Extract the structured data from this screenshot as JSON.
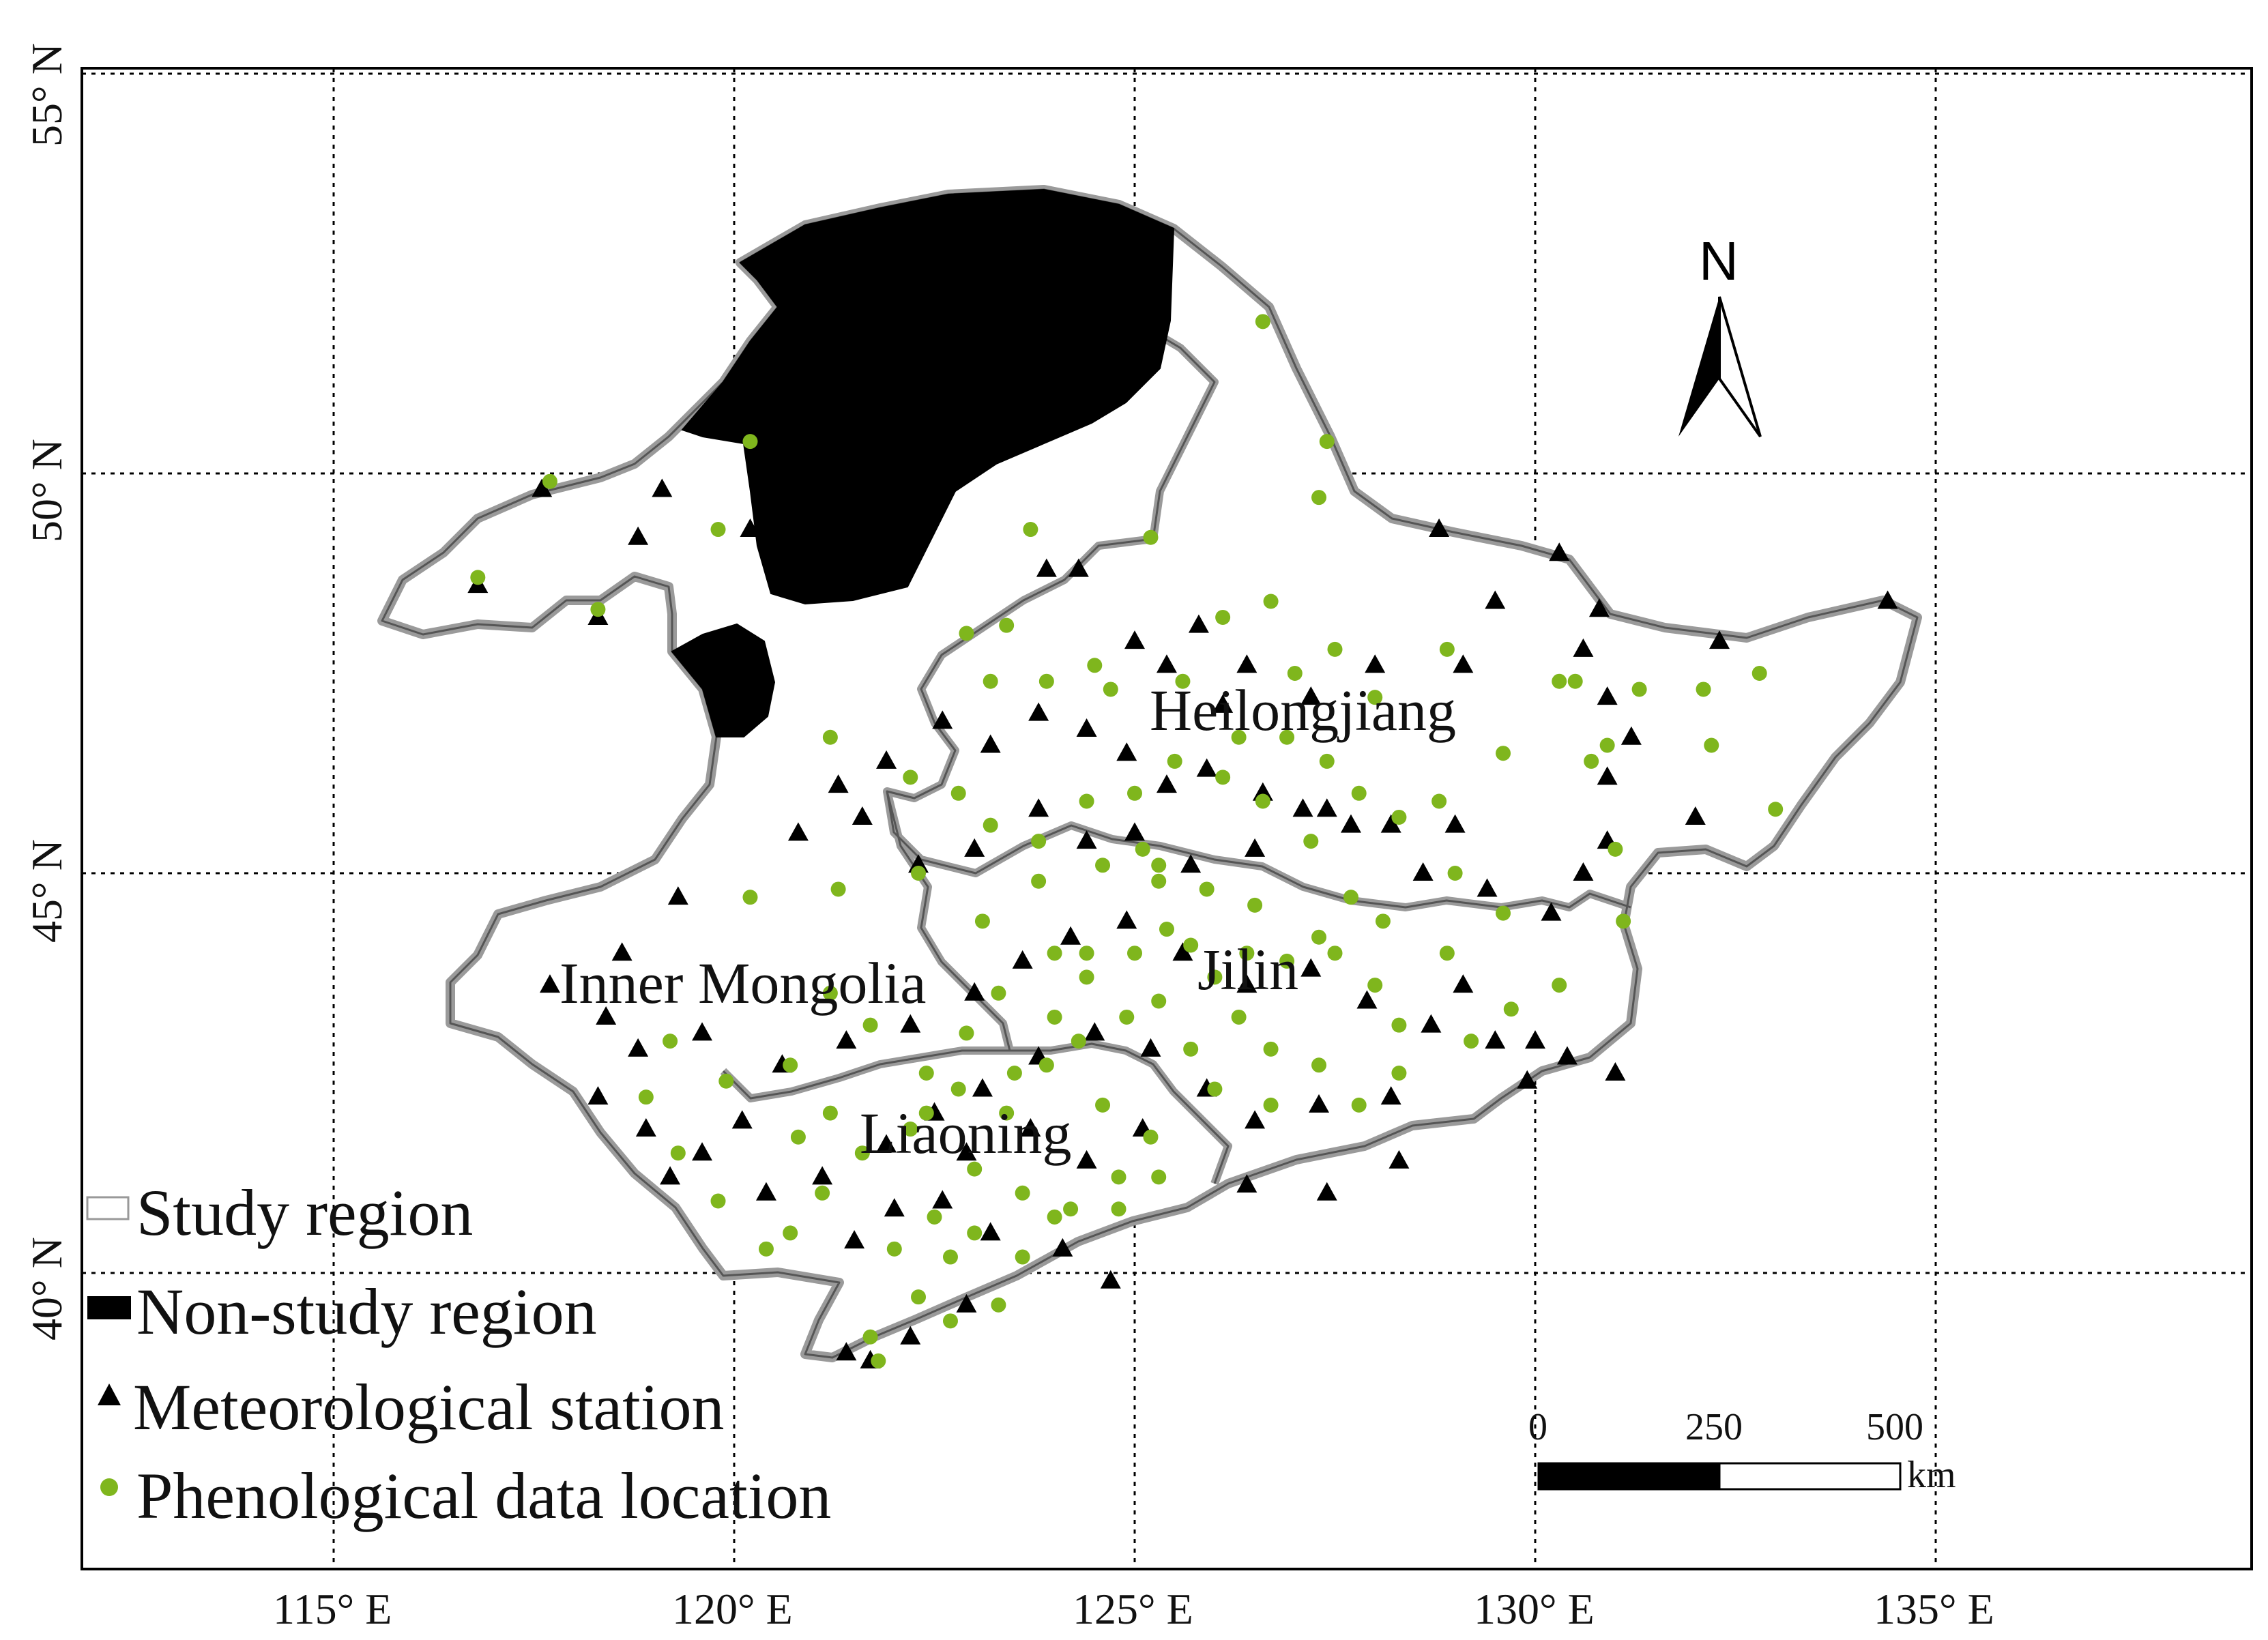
{
  "map": {
    "lon_labels": [
      "115° E",
      "120° E",
      "125° E",
      "130° E",
      "135° E"
    ],
    "lat_labels": [
      "55° N",
      "50° N",
      "45° N",
      "40° N"
    ],
    "region_labels": [
      "Heilongjiang",
      "Inner Mongolia",
      "Jilin",
      "Liaoning"
    ],
    "north_arrow": "N",
    "scale_bar": {
      "ticks": [
        "0",
        "250",
        "500"
      ],
      "unit": "km"
    },
    "legend": {
      "study_region": "Study region",
      "non_study_region": "Non-study region",
      "meteorological_station": "Meteorological station",
      "phenological_location": "Phenological data location"
    },
    "colors": {
      "phenological": "#7fb61d",
      "station": "#000000",
      "boundary": "#9a9a9a",
      "non_study": "#000000"
    },
    "icons": {
      "station": "triangle-icon",
      "phenological": "dot-icon",
      "north": "north-arrow-icon"
    },
    "stations": [
      [
        117.6,
        49.8
      ],
      [
        118.8,
        49.2
      ],
      [
        116.8,
        48.6
      ],
      [
        118.3,
        48.2
      ],
      [
        120.2,
        49.3
      ],
      [
        119.1,
        49.8
      ],
      [
        123.9,
        48.8
      ],
      [
        124.3,
        48.8
      ],
      [
        125.0,
        47.9
      ],
      [
        125.8,
        48.1
      ],
      [
        126.4,
        47.6
      ],
      [
        127.2,
        47.2
      ],
      [
        128.0,
        47.6
      ],
      [
        129.1,
        47.6
      ],
      [
        129.5,
        48.4
      ],
      [
        128.8,
        49.3
      ],
      [
        130.3,
        49.0
      ],
      [
        130.8,
        48.3
      ],
      [
        132.3,
        47.9
      ],
      [
        134.4,
        48.4
      ],
      [
        130.6,
        47.8
      ],
      [
        130.9,
        47.2
      ],
      [
        131.2,
        46.7
      ],
      [
        130.9,
        46.2
      ],
      [
        132.0,
        45.7
      ],
      [
        130.9,
        45.4
      ],
      [
        130.6,
        45.0
      ],
      [
        129.0,
        45.6
      ],
      [
        128.2,
        45.6
      ],
      [
        127.4,
        45.8
      ],
      [
        126.6,
        46.0
      ],
      [
        125.9,
        46.3
      ],
      [
        125.4,
        46.1
      ],
      [
        124.9,
        46.5
      ],
      [
        124.4,
        46.8
      ],
      [
        123.8,
        47.0
      ],
      [
        123.2,
        46.6
      ],
      [
        122.6,
        46.9
      ],
      [
        121.9,
        46.4
      ],
      [
        121.3,
        46.1
      ],
      [
        120.8,
        45.5
      ],
      [
        121.6,
        45.7
      ],
      [
        122.3,
        45.1
      ],
      [
        123.0,
        45.3
      ],
      [
        123.8,
        45.8
      ],
      [
        124.4,
        45.4
      ],
      [
        125.0,
        45.5
      ],
      [
        125.7,
        45.1
      ],
      [
        126.5,
        45.3
      ],
      [
        127.1,
        45.8
      ],
      [
        127.7,
        45.6
      ],
      [
        128.6,
        45.0
      ],
      [
        129.4,
        44.8
      ],
      [
        130.2,
        44.5
      ],
      [
        119.3,
        44.7
      ],
      [
        118.6,
        44.0
      ],
      [
        117.7,
        43.6
      ],
      [
        118.4,
        43.2
      ],
      [
        119.6,
        43.0
      ],
      [
        120.6,
        42.6
      ],
      [
        121.4,
        42.9
      ],
      [
        122.2,
        43.1
      ],
      [
        123.0,
        43.5
      ],
      [
        123.6,
        43.9
      ],
      [
        124.2,
        44.2
      ],
      [
        124.9,
        44.4
      ],
      [
        125.6,
        44.0
      ],
      [
        126.4,
        43.6
      ],
      [
        127.2,
        43.8
      ],
      [
        127.9,
        43.4
      ],
      [
        128.7,
        43.1
      ],
      [
        129.5,
        42.9
      ],
      [
        130.4,
        42.7
      ],
      [
        129.9,
        42.4
      ],
      [
        128.2,
        42.2
      ],
      [
        127.3,
        42.1
      ],
      [
        126.5,
        41.9
      ],
      [
        125.9,
        42.3
      ],
      [
        125.2,
        42.8
      ],
      [
        124.5,
        43.0
      ],
      [
        123.8,
        42.7
      ],
      [
        123.1,
        42.3
      ],
      [
        122.5,
        42.0
      ],
      [
        121.9,
        41.6
      ],
      [
        121.1,
        41.2
      ],
      [
        120.4,
        41.0
      ],
      [
        119.6,
        41.5
      ],
      [
        118.9,
        41.8
      ],
      [
        118.3,
        42.2
      ],
      [
        118.8,
        42.8
      ],
      [
        119.2,
        41.2
      ],
      [
        120.1,
        41.9
      ],
      [
        122.9,
        41.5
      ],
      [
        123.7,
        41.8
      ],
      [
        124.4,
        41.4
      ],
      [
        125.1,
        41.8
      ],
      [
        122.0,
        40.8
      ],
      [
        121.5,
        40.4
      ],
      [
        122.6,
        40.9
      ],
      [
        123.2,
        40.5
      ],
      [
        124.1,
        40.3
      ],
      [
        124.7,
        39.9
      ],
      [
        122.9,
        39.6
      ],
      [
        122.2,
        39.2
      ],
      [
        121.4,
        39.0
      ],
      [
        121.7,
        38.9
      ],
      [
        126.4,
        41.1
      ],
      [
        127.4,
        41.0
      ],
      [
        128.3,
        41.4
      ],
      [
        129.1,
        43.6
      ],
      [
        130.0,
        42.9
      ],
      [
        131.0,
        42.5
      ],
      [
        126.1,
        47.1
      ],
      [
        125.4,
        47.6
      ]
    ],
    "phenological": [
      [
        117.7,
        49.9
      ],
      [
        116.8,
        48.7
      ],
      [
        118.3,
        48.3
      ],
      [
        119.8,
        49.3
      ],
      [
        120.2,
        50.4
      ],
      [
        123.7,
        49.3
      ],
      [
        125.2,
        49.2
      ],
      [
        127.3,
        49.7
      ],
      [
        126.6,
        51.9
      ],
      [
        127.4,
        50.4
      ],
      [
        128.9,
        47.8
      ],
      [
        127.5,
        47.8
      ],
      [
        126.1,
        48.2
      ],
      [
        126.7,
        48.4
      ],
      [
        125.6,
        47.4
      ],
      [
        124.7,
        47.3
      ],
      [
        123.4,
        48.1
      ],
      [
        122.9,
        48.0
      ],
      [
        123.2,
        47.4
      ],
      [
        123.9,
        47.4
      ],
      [
        124.5,
        47.6
      ],
      [
        127.0,
        47.5
      ],
      [
        128.0,
        47.2
      ],
      [
        129.6,
        46.5
      ],
      [
        130.3,
        47.4
      ],
      [
        130.5,
        47.4
      ],
      [
        131.3,
        47.3
      ],
      [
        132.1,
        47.3
      ],
      [
        132.8,
        47.5
      ],
      [
        132.2,
        46.6
      ],
      [
        130.7,
        46.4
      ],
      [
        130.9,
        46.6
      ],
      [
        131.0,
        45.3
      ],
      [
        133.0,
        45.8
      ],
      [
        131.1,
        44.4
      ],
      [
        129.6,
        44.5
      ],
      [
        130.3,
        43.6
      ],
      [
        129.7,
        43.3
      ],
      [
        129.2,
        42.9
      ],
      [
        128.3,
        43.1
      ],
      [
        128.0,
        43.6
      ],
      [
        127.5,
        44.0
      ],
      [
        126.9,
        43.9
      ],
      [
        126.4,
        44.0
      ],
      [
        126.0,
        43.7
      ],
      [
        125.7,
        44.1
      ],
      [
        125.3,
        43.4
      ],
      [
        124.9,
        43.2
      ],
      [
        124.4,
        43.7
      ],
      [
        124.0,
        43.2
      ],
      [
        123.3,
        43.5
      ],
      [
        122.9,
        43.0
      ],
      [
        122.4,
        42.5
      ],
      [
        121.7,
        43.1
      ],
      [
        121.2,
        43.5
      ],
      [
        120.7,
        42.6
      ],
      [
        119.9,
        42.4
      ],
      [
        119.2,
        42.9
      ],
      [
        118.9,
        42.2
      ],
      [
        119.3,
        41.5
      ],
      [
        119.8,
        40.9
      ],
      [
        120.4,
        40.3
      ],
      [
        120.7,
        40.5
      ],
      [
        121.1,
        41.0
      ],
      [
        121.6,
        41.5
      ],
      [
        122.2,
        41.8
      ],
      [
        122.8,
        42.3
      ],
      [
        123.4,
        42.0
      ],
      [
        123.9,
        42.6
      ],
      [
        124.6,
        42.1
      ],
      [
        125.2,
        41.7
      ],
      [
        124.8,
        41.2
      ],
      [
        124.2,
        40.8
      ],
      [
        123.6,
        41.0
      ],
      [
        123.0,
        41.3
      ],
      [
        122.5,
        40.7
      ],
      [
        122.0,
        40.3
      ],
      [
        122.3,
        39.7
      ],
      [
        122.7,
        39.4
      ],
      [
        123.3,
        39.6
      ],
      [
        123.0,
        40.5
      ],
      [
        121.7,
        39.2
      ],
      [
        124.8,
        40.8
      ],
      [
        125.3,
        41.2
      ],
      [
        126.0,
        42.3
      ],
      [
        126.7,
        42.1
      ],
      [
        127.3,
        42.6
      ],
      [
        127.8,
        42.1
      ],
      [
        128.3,
        42.5
      ],
      [
        128.9,
        44.0
      ],
      [
        127.7,
        44.7
      ],
      [
        127.2,
        45.4
      ],
      [
        126.6,
        45.9
      ],
      [
        126.1,
        46.2
      ],
      [
        125.5,
        46.4
      ],
      [
        125.0,
        46.0
      ],
      [
        124.4,
        45.9
      ],
      [
        123.8,
        45.4
      ],
      [
        123.2,
        45.6
      ],
      [
        122.8,
        46.0
      ],
      [
        122.2,
        46.2
      ],
      [
        121.2,
        46.7
      ],
      [
        122.3,
        45.0
      ],
      [
        121.3,
        44.8
      ],
      [
        120.2,
        44.7
      ],
      [
        123.1,
        44.4
      ],
      [
        123.8,
        44.9
      ],
      [
        124.6,
        45.1
      ],
      [
        125.3,
        44.9
      ],
      [
        125.9,
        44.8
      ],
      [
        126.5,
        44.6
      ],
      [
        127.3,
        44.2
      ],
      [
        128.1,
        44.4
      ],
      [
        129.0,
        45.0
      ],
      [
        125.1,
        45.3
      ],
      [
        125.3,
        45.1
      ],
      [
        125.4,
        44.3
      ],
      [
        125.0,
        44.0
      ],
      [
        126.3,
        43.2
      ],
      [
        126.7,
        42.8
      ],
      [
        125.7,
        42.8
      ],
      [
        124.3,
        42.9
      ],
      [
        123.5,
        42.5
      ],
      [
        122.4,
        42.0
      ],
      [
        121.2,
        42.0
      ],
      [
        120.8,
        41.7
      ],
      [
        122.7,
        40.2
      ],
      [
        123.6,
        40.2
      ],
      [
        124.0,
        40.7
      ],
      [
        121.8,
        38.9
      ],
      [
        124.4,
        44.0
      ],
      [
        124.0,
        44.0
      ],
      [
        126.3,
        46.7
      ],
      [
        126.9,
        46.7
      ],
      [
        127.4,
        46.4
      ],
      [
        127.8,
        46.0
      ],
      [
        128.3,
        45.7
      ],
      [
        128.8,
        45.9
      ]
    ]
  }
}
